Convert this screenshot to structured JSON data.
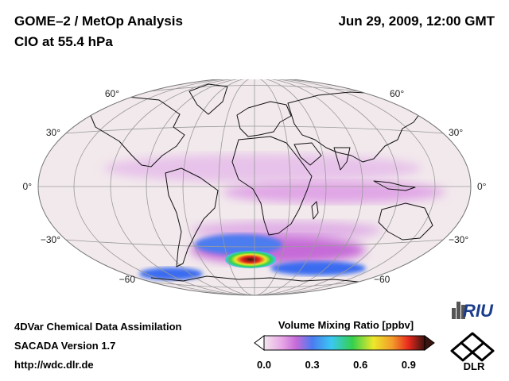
{
  "header": {
    "line1": "GOME–2 / MetOp Analysis",
    "line2": "ClO at 55.4 hPa",
    "timestamp": "Jun 29, 2009, 12:00 GMT"
  },
  "map": {
    "projection": "Hammer-Aitoff",
    "lat_labels_west": [
      "60°",
      "30°",
      "0°",
      "−30°",
      "−60"
    ],
    "lat_labels_east": [
      "60°",
      "30°",
      "0°",
      "−30°",
      "−60"
    ]
  },
  "footer": {
    "line1": "4DVar Chemical Data Assimilation",
    "line2": "SACADA Version 1.7",
    "line3": "http://wdc.dlr.de"
  },
  "colorbar": {
    "title": "Volume Mixing Ratio [ppbv]",
    "ticks": [
      "0.0",
      "0.3",
      "0.6",
      "0.9"
    ],
    "tick_values": [
      0.0,
      0.3,
      0.6,
      0.9
    ],
    "range": [
      0.0,
      1.0
    ],
    "colors": [
      "#f3e6ee",
      "#e7a8e6",
      "#c66ad8",
      "#4b7cf0",
      "#3bc8f2",
      "#34d04d",
      "#ece82b",
      "#f39a2a",
      "#e8281e",
      "#3a1410"
    ]
  },
  "logos": {
    "riu": "RIU",
    "dlr": "DLR"
  }
}
